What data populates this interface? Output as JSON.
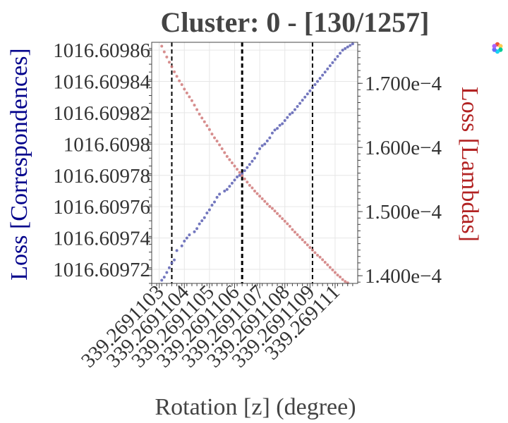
{
  "title": "Cluster: 0 - [130/1257]",
  "colors": {
    "series_correspondences": "#5b5fb3",
    "series_lambdas": "#d07a7a",
    "left_axis_title": "#00008b",
    "right_axis_title": "#b22222",
    "grid": "#e6e6e6",
    "frame": "#444444"
  },
  "logo": {
    "icon": "plotly-logo-icon"
  },
  "chart_data": {
    "type": "scatter",
    "title": "Cluster: 0 - [130/1257]",
    "xlabel": "Rotation [z] (degree)",
    "ylabel_left": "Loss [Correspondences]",
    "ylabel_right": "Loss [Lambdas]",
    "x_offset": 339.2691,
    "x_ticks": [
      {
        "label": "339.2691103",
        "value": 339.2691103
      },
      {
        "label": "339.2691104",
        "value": 339.2691104
      },
      {
        "label": "339.2691105",
        "value": 339.2691105
      },
      {
        "label": "339.2691106",
        "value": 339.2691106
      },
      {
        "label": "339.2691107",
        "value": 339.2691107
      },
      {
        "label": "339.2691108",
        "value": 339.2691108
      },
      {
        "label": "339.2691109",
        "value": 339.2691109
      },
      {
        "label": "339.269111",
        "value": 339.269111
      }
    ],
    "xlim": [
      339.26911027,
      339.26911109
    ],
    "ylim_left": [
      1016.609711,
      1016.609865
    ],
    "yticks_left": [
      {
        "label": "1016.60972",
        "value": 1016.60972
      },
      {
        "label": "1016.60974",
        "value": 1016.60974
      },
      {
        "label": "1016.60976",
        "value": 1016.60976
      },
      {
        "label": "1016.60978",
        "value": 1016.60978
      },
      {
        "label": "1016.6098",
        "value": 1016.6098
      },
      {
        "label": "1016.60982",
        "value": 1016.60982
      },
      {
        "label": "1016.60984",
        "value": 1016.60984
      },
      {
        "label": "1016.60986",
        "value": 1016.60986
      }
    ],
    "ylim_right": [
      0.0001388,
      0.0001764
    ],
    "yticks_right": [
      {
        "label": "1.400e−4",
        "value": 0.00014
      },
      {
        "label": "1.500e−4",
        "value": 0.00015
      },
      {
        "label": "1.600e−4",
        "value": 0.00016
      },
      {
        "label": "1.700e−4",
        "value": 0.00017
      }
    ],
    "vlines": [
      {
        "x": 339.26911035,
        "style": "dashed"
      },
      {
        "x": 339.26911063,
        "style": "dashed-bold"
      },
      {
        "x": 339.26911091,
        "style": "dashed"
      }
    ],
    "grid": true,
    "series": [
      {
        "name": "Loss [Correspondences]",
        "axis": "left",
        "color": "#5b5fb3",
        "x": [
          339.26911031,
          339.26911032,
          339.26911033,
          339.26911034,
          339.26911035,
          339.26911036,
          339.26911037,
          339.26911039,
          339.2691104,
          339.26911041,
          339.26911042,
          339.26911044,
          339.26911045,
          339.26911046,
          339.26911047,
          339.26911048,
          339.26911049,
          339.2691105,
          339.26911051,
          339.26911052,
          339.26911053,
          339.26911054,
          339.26911056,
          339.26911057,
          339.26911058,
          339.26911059,
          339.2691106,
          339.26911061,
          339.26911062,
          339.26911063,
          339.26911064,
          339.26911065,
          339.26911066,
          339.26911067,
          339.26911068,
          339.26911069,
          339.2691107,
          339.26911071,
          339.26911072,
          339.26911073,
          339.26911074,
          339.26911075,
          339.26911076,
          339.26911077,
          339.26911078,
          339.26911079,
          339.2691108,
          339.26911081,
          339.26911082,
          339.26911083,
          339.26911084,
          339.26911085,
          339.26911086,
          339.26911087,
          339.26911088,
          339.26911089,
          339.2691109,
          339.26911091,
          339.26911092,
          339.26911093,
          339.26911094,
          339.26911095,
          339.26911096,
          339.26911097,
          339.26911098,
          339.26911099,
          339.269111,
          339.26911101,
          339.26911102,
          339.26911103,
          339.26911104,
          339.26911105,
          339.26911106,
          339.26911107
        ],
        "y": [
          1016.609713,
          1016.609715,
          1016.609718,
          1016.609721,
          1016.609724,
          1016.609726,
          1016.609732,
          1016.609735,
          1016.609738,
          1016.60974,
          1016.609742,
          1016.609744,
          1016.609746,
          1016.609749,
          1016.609751,
          1016.609753,
          1016.609756,
          1016.609758,
          1016.609761,
          1016.609763,
          1016.609766,
          1016.609768,
          1016.60977,
          1016.609771,
          1016.609773,
          1016.609775,
          1016.609777,
          1016.609779,
          1016.60978,
          1016.609781,
          1016.609783,
          1016.609785,
          1016.609787,
          1016.609789,
          1016.609791,
          1016.609794,
          1016.609797,
          1016.609799,
          1016.6098,
          1016.609802,
          1016.609804,
          1016.609807,
          1016.609809,
          1016.60981,
          1016.609812,
          1016.609813,
          1016.609815,
          1016.609817,
          1016.609819,
          1016.60982,
          1016.609822,
          1016.609824,
          1016.609826,
          1016.609828,
          1016.60983,
          1016.609832,
          1016.609834,
          1016.609836,
          1016.609838,
          1016.60984,
          1016.609842,
          1016.609844,
          1016.609846,
          1016.609848,
          1016.60985,
          1016.609852,
          1016.609854,
          1016.609856,
          1016.609858,
          1016.60986,
          1016.609861,
          1016.609862,
          1016.609863,
          1016.609864
        ]
      },
      {
        "name": "Loss [Lambdas]",
        "axis": "right",
        "color": "#d07a7a",
        "x": [
          339.26911031,
          339.26911032,
          339.26911033,
          339.26911034,
          339.26911035,
          339.26911036,
          339.26911037,
          339.26911038,
          339.26911039,
          339.2691104,
          339.26911041,
          339.26911042,
          339.26911043,
          339.26911044,
          339.26911045,
          339.26911046,
          339.26911047,
          339.26911048,
          339.26911049,
          339.2691105,
          339.26911051,
          339.26911052,
          339.26911053,
          339.26911054,
          339.26911055,
          339.26911056,
          339.26911057,
          339.26911058,
          339.26911059,
          339.2691106,
          339.26911061,
          339.26911062,
          339.26911063,
          339.26911064,
          339.26911065,
          339.26911066,
          339.26911067,
          339.26911068,
          339.26911069,
          339.2691107,
          339.26911071,
          339.26911072,
          339.26911073,
          339.26911074,
          339.26911075,
          339.26911076,
          339.26911077,
          339.26911078,
          339.26911079,
          339.2691108,
          339.26911081,
          339.26911082,
          339.26911083,
          339.26911084,
          339.26911085,
          339.26911086,
          339.26911087,
          339.26911088,
          339.26911089,
          339.2691109,
          339.26911091,
          339.26911092,
          339.26911093,
          339.26911094,
          339.26911095,
          339.26911096,
          339.26911097,
          339.26911098,
          339.26911099,
          339.269111,
          339.26911101,
          339.26911102,
          339.26911103,
          339.26911104,
          339.26911105
        ],
        "y": [
          0.0001758,
          0.0001749,
          0.0001741,
          0.0001733,
          0.0001726,
          0.0001718,
          0.0001711,
          0.0001704,
          0.0001698,
          0.0001691,
          0.0001685,
          0.0001679,
          0.0001673,
          0.0001666,
          0.0001659,
          0.0001652,
          0.0001646,
          0.000164,
          0.0001634,
          0.0001628,
          0.0001621,
          0.0001615,
          0.000161,
          0.0001604,
          0.0001598,
          0.0001592,
          0.0001586,
          0.0001581,
          0.0001576,
          0.0001571,
          0.0001566,
          0.0001561,
          0.0001556,
          0.0001551,
          0.0001546,
          0.0001541,
          0.0001537,
          0.0001532,
          0.0001528,
          0.0001524,
          0.000152,
          0.0001516,
          0.0001512,
          0.0001508,
          0.0001505,
          0.0001501,
          0.0001497,
          0.0001493,
          0.0001489,
          0.0001485,
          0.0001481,
          0.0001477,
          0.0001472,
          0.0001468,
          0.0001464,
          0.000146,
          0.0001456,
          0.0001452,
          0.0001448,
          0.0001444,
          0.000144,
          0.0001436,
          0.0001432,
          0.0001429,
          0.0001425,
          0.0001421,
          0.0001417,
          0.0001413,
          0.0001409,
          0.0001405,
          0.0001401,
          0.0001398,
          0.0001394,
          0.0001391,
          0.0001389
        ]
      }
    ]
  }
}
